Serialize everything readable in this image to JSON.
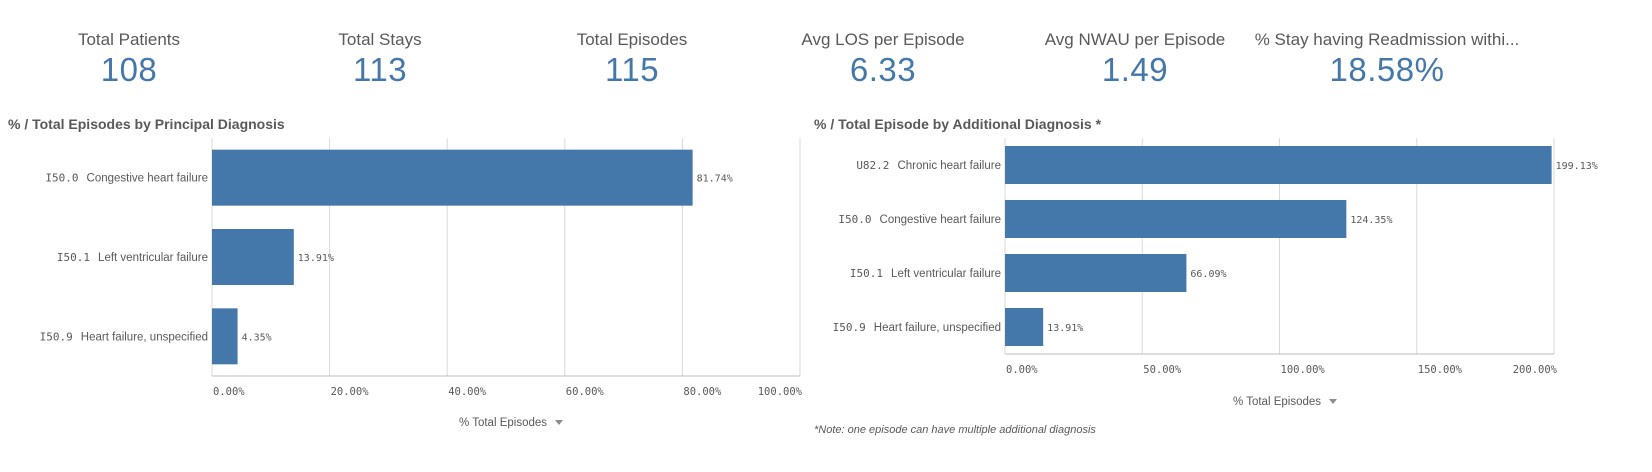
{
  "kpis": [
    {
      "label": "Total Patients",
      "value": "108"
    },
    {
      "label": "Total Stays",
      "value": "113"
    },
    {
      "label": "Total Episodes",
      "value": "115"
    },
    {
      "label": "Avg LOS per Episode",
      "value": "6.33"
    },
    {
      "label": "Avg NWAU per Episode",
      "value": "1.49"
    },
    {
      "label": "% Stay having Readmission withi...",
      "value": "18.58%"
    }
  ],
  "colors": {
    "bar": "#4477aa",
    "kpi_value": "#4477aa",
    "grid": "#d9d9d9",
    "text": "#595959"
  },
  "note": "*Note: one episode can have multiple additional diagnosis",
  "chart_data": [
    {
      "type": "bar",
      "orientation": "horizontal",
      "title": "% / Total Episodes by Principal Diagnosis",
      "xlabel": "% Total Episodes",
      "categories": [
        {
          "code": "I50.0",
          "name": "Congestive heart failure"
        },
        {
          "code": "I50.1",
          "name": "Left ventricular failure"
        },
        {
          "code": "I50.9",
          "name": "Heart failure, unspecified"
        }
      ],
      "values": [
        81.74,
        13.91,
        4.35
      ],
      "value_labels": [
        "81.74%",
        "13.91%",
        "4.35%"
      ],
      "xlim": [
        0,
        100
      ],
      "ticks": [
        0,
        20,
        40,
        60,
        80,
        100
      ],
      "tick_labels": [
        "0.00%",
        "20.00%",
        "40.00%",
        "60.00%",
        "80.00%",
        "100.00%"
      ],
      "grid": true
    },
    {
      "type": "bar",
      "orientation": "horizontal",
      "title": "% / Total Episode by Additional Diagnosis *",
      "xlabel": "% Total Episodes",
      "categories": [
        {
          "code": "U82.2",
          "name": "Chronic heart failure"
        },
        {
          "code": "I50.0",
          "name": "Congestive heart failure"
        },
        {
          "code": "I50.1",
          "name": "Left ventricular failure"
        },
        {
          "code": "I50.9",
          "name": "Heart failure, unspecified"
        }
      ],
      "values": [
        199.13,
        124.35,
        66.09,
        13.91
      ],
      "value_labels": [
        "199.13%",
        "124.35%",
        "66.09%",
        "13.91%"
      ],
      "xlim": [
        0,
        200
      ],
      "ticks": [
        0,
        50,
        100,
        150,
        200
      ],
      "tick_labels": [
        "0.00%",
        "50.00%",
        "100.00%",
        "150.00%",
        "200.00%"
      ],
      "grid": true
    }
  ]
}
